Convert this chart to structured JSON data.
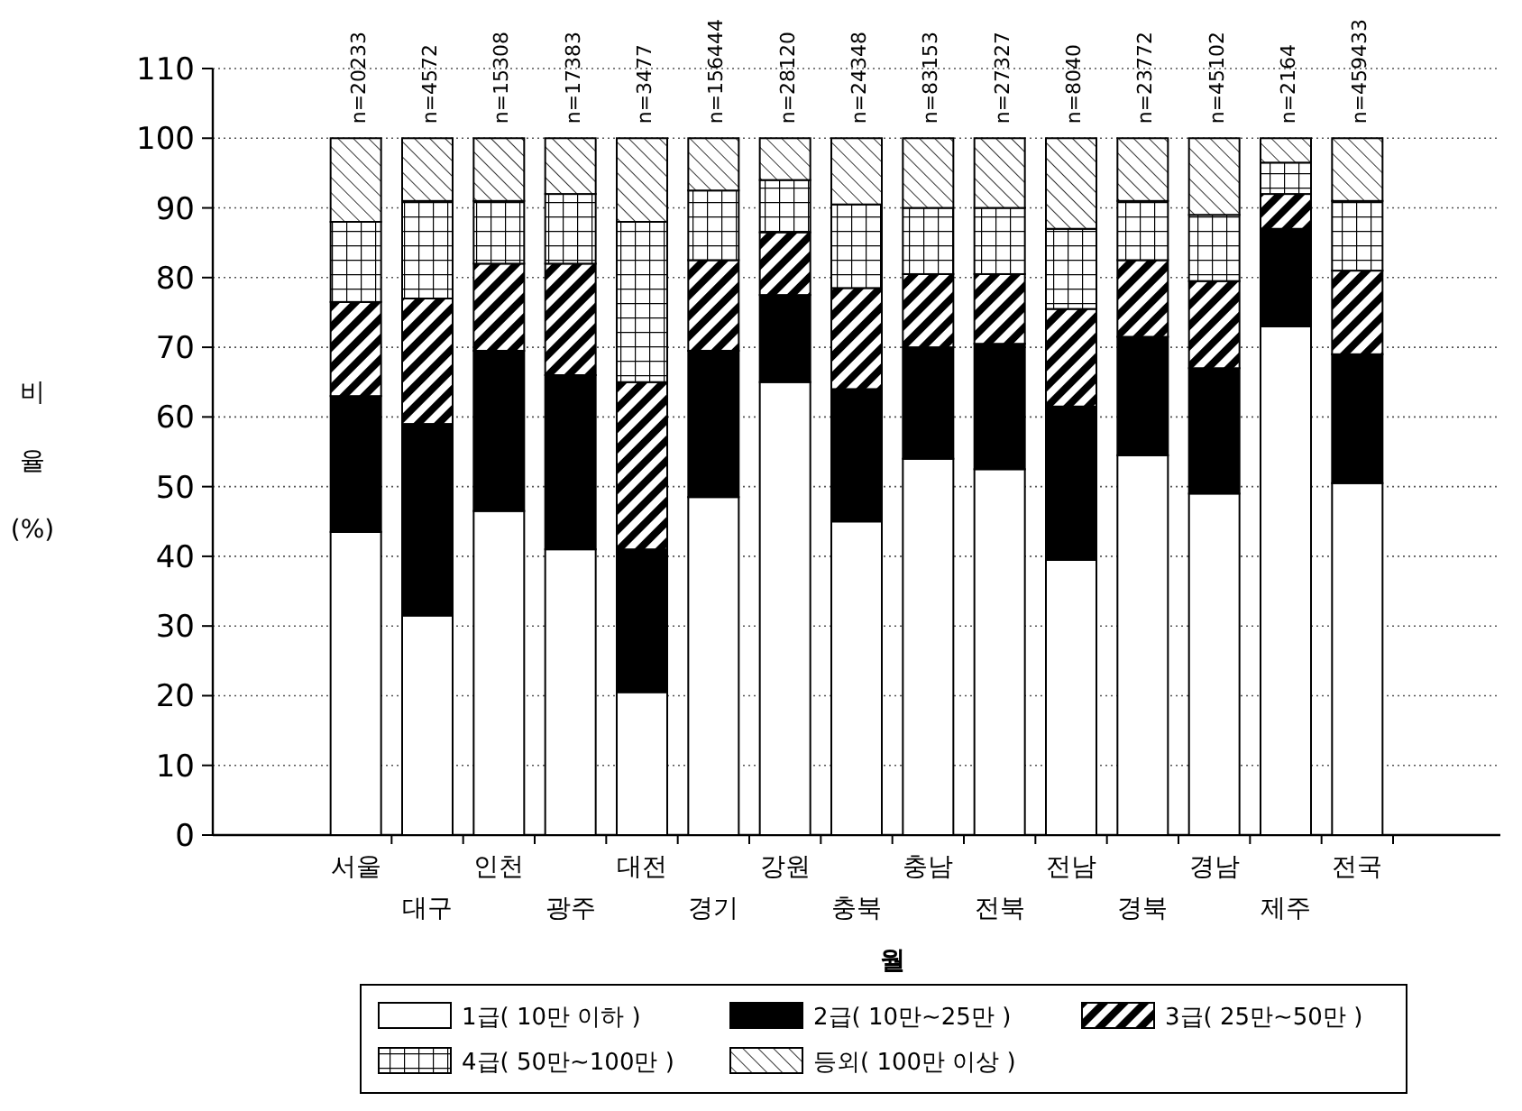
{
  "chart_data": {
    "type": "bar",
    "stacked": true,
    "xlabel": "월",
    "ylabel": "비 율 (%)",
    "categories": [
      "서울",
      "대구",
      "인천",
      "광주",
      "대전",
      "경기",
      "강원",
      "충북",
      "충남",
      "전북",
      "전남",
      "경북",
      "경남",
      "제주",
      "전국"
    ],
    "series": [
      {
        "name": "1급( 10만 이하 )",
        "color": "#ffffff",
        "values": [
          43.5,
          31.5,
          46.5,
          41,
          20.5,
          48.5,
          65,
          45,
          54,
          52.5,
          39.5,
          54.5,
          49,
          73,
          50.5
        ]
      },
      {
        "name": "2급( 10만~25만 )",
        "color": "#000000",
        "values": [
          19.5,
          27.5,
          23,
          25,
          20.5,
          21,
          12.5,
          19,
          16,
          18,
          22,
          17,
          18,
          14,
          18.5
        ]
      },
      {
        "name": "3급( 25만~50만 )",
        "color": "#000000",
        "values": [
          13.5,
          18,
          12.5,
          16,
          24,
          13,
          9,
          14.5,
          10.5,
          10,
          14,
          11,
          12.5,
          5,
          12
        ]
      },
      {
        "name": "4급( 50만~100만 )",
        "color": "#000000",
        "values": [
          11.5,
          14,
          9,
          10,
          23,
          10,
          7.5,
          12,
          9.5,
          9.5,
          11.5,
          8.5,
          9.5,
          4.5,
          10
        ]
      },
      {
        "name": "등외( 100만 이상 )",
        "color": "#000000",
        "values": [
          12,
          9,
          9,
          8,
          12,
          7.5,
          6,
          9.5,
          10,
          10,
          13,
          9,
          11,
          3.5,
          9
        ]
      }
    ],
    "annotations": [
      "n=20233",
      "n=4572",
      "n=15308",
      "n=17383",
      "n=3477",
      "n=156444",
      "n=28120",
      "n=24348",
      "n=83153",
      "n=27327",
      "n=8040",
      "n=23772",
      "n=45102",
      "n=2164",
      "n=459433"
    ],
    "ylim": [
      0,
      110
    ],
    "yticks": [
      0,
      10,
      20,
      30,
      40,
      50,
      60,
      70,
      80,
      90,
      100,
      110
    ],
    "grid": "y",
    "legend": "bottom"
  }
}
